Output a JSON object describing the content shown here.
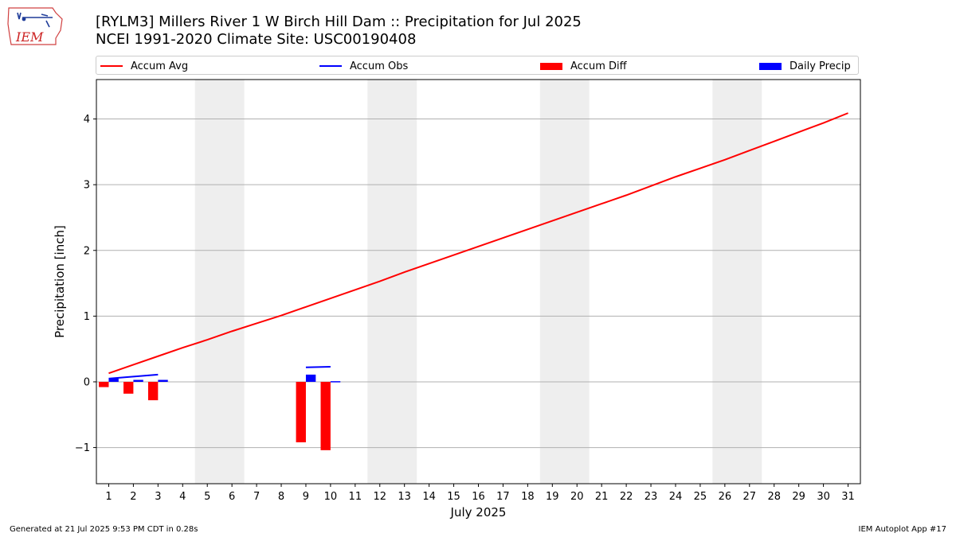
{
  "header": {
    "title_line1": "[RYLM3] Millers River 1 W Birch Hill Dam :: Precipitation for Jul 2025",
    "title_line2": "NCEI 1991-2020 Climate Site: USC00190408",
    "logo_text": "IEM"
  },
  "footer": {
    "generated": "Generated at 21 Jul 2025 9:53 PM CDT in 0.28s",
    "app": "IEM Autoplot App #17"
  },
  "colors": {
    "accum_avg": "#ff0000",
    "accum_obs": "#0000ff",
    "accum_diff": "#ff0000",
    "daily_precip": "#0000ff",
    "weekend_shade": "#eeeeee",
    "grid": "#b0b0b0"
  },
  "chart_data": {
    "type": "bar",
    "title": "[RYLM3] Millers River 1 W Birch Hill Dam :: Precipitation for Jul 2025",
    "xlabel": "July 2025",
    "ylabel": "Precipitation [inch]",
    "xlim": [
      0.5,
      31.5
    ],
    "ylim": [
      -1.55,
      4.6
    ],
    "yticks": [
      -1,
      0,
      1,
      2,
      3,
      4
    ],
    "xticks": [
      1,
      2,
      3,
      4,
      5,
      6,
      7,
      8,
      9,
      10,
      11,
      12,
      13,
      14,
      15,
      16,
      17,
      18,
      19,
      20,
      21,
      22,
      23,
      24,
      25,
      26,
      27,
      28,
      29,
      30,
      31
    ],
    "grid": "horizontal",
    "legend_placement": "top, above plot",
    "weekend_shading": [
      [
        4.5,
        6.5
      ],
      [
        11.5,
        13.5
      ],
      [
        18.5,
        20.5
      ],
      [
        25.5,
        27.5
      ]
    ],
    "legend": [
      {
        "label": "Accum Avg",
        "kind": "line",
        "color": "#ff0000"
      },
      {
        "label": "Accum Obs",
        "kind": "line",
        "color": "#0000ff"
      },
      {
        "label": "Accum Diff",
        "kind": "bar",
        "color": "#ff0000"
      },
      {
        "label": "Daily Precip",
        "kind": "bar",
        "color": "#0000ff"
      }
    ],
    "series": [
      {
        "name": "Accum Avg",
        "kind": "line",
        "x": [
          1,
          2,
          3,
          4,
          5,
          6,
          7,
          8,
          9,
          10,
          11,
          12,
          13,
          14,
          15,
          16,
          17,
          18,
          19,
          20,
          21,
          22,
          23,
          24,
          25,
          26,
          27,
          28,
          29,
          30,
          31
        ],
        "values": [
          0.13,
          0.26,
          0.39,
          0.52,
          0.64,
          0.77,
          0.89,
          1.01,
          1.14,
          1.27,
          1.4,
          1.53,
          1.67,
          1.8,
          1.93,
          2.06,
          2.19,
          2.32,
          2.45,
          2.58,
          2.71,
          2.84,
          2.98,
          3.12,
          3.25,
          3.38,
          3.52,
          3.66,
          3.8,
          3.94,
          4.09
        ]
      },
      {
        "name": "Accum Obs",
        "kind": "line",
        "segments": [
          {
            "x": [
              1,
              2,
              3
            ],
            "values": [
              0.05,
              0.08,
              0.11
            ]
          },
          {
            "x": [
              9,
              10
            ],
            "values": [
              0.22,
              0.23
            ]
          }
        ]
      },
      {
        "name": "Accum Diff",
        "kind": "bar",
        "x": [
          1,
          2,
          3,
          9,
          10
        ],
        "values": [
          -0.08,
          -0.18,
          -0.28,
          -0.92,
          -1.04
        ]
      },
      {
        "name": "Daily Precip",
        "kind": "bar",
        "x": [
          1,
          2,
          3,
          9,
          10
        ],
        "values": [
          0.05,
          0.03,
          0.03,
          0.11,
          0.01
        ]
      }
    ]
  }
}
